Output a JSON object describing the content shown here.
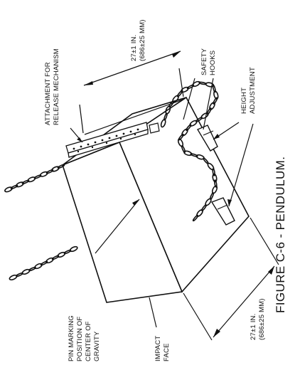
{
  "figure": {
    "caption": "FIGURE C-6 - PENDULUM.",
    "labels": {
      "attachment_line1": "ATTACHMENT FOR",
      "attachment_line2": "RELEASE MECHANISM",
      "dim_top_line1": "27±1 IN.",
      "dim_top_line2": "(686±25 MM)",
      "safety_line1": "SAFETY",
      "safety_line2": "HOOKS",
      "height_line1": "HEIGHT",
      "height_line2": "ADJUSTMENT",
      "dim_right_line1": "27±1 IN.",
      "dim_right_line2": "(686±25 MM)",
      "impact_line1": "IMPACT",
      "impact_line2": "FACE",
      "pin_line1": "PIN MARKING",
      "pin_line2": "POSITION OF",
      "pin_line3": "CENTER OF",
      "pin_line4": "GRAVITY"
    }
  },
  "colors": {
    "ink": "#111111",
    "face_front": "#ffffff",
    "face_top": "#ffffff",
    "face_side": "#ffffff"
  }
}
